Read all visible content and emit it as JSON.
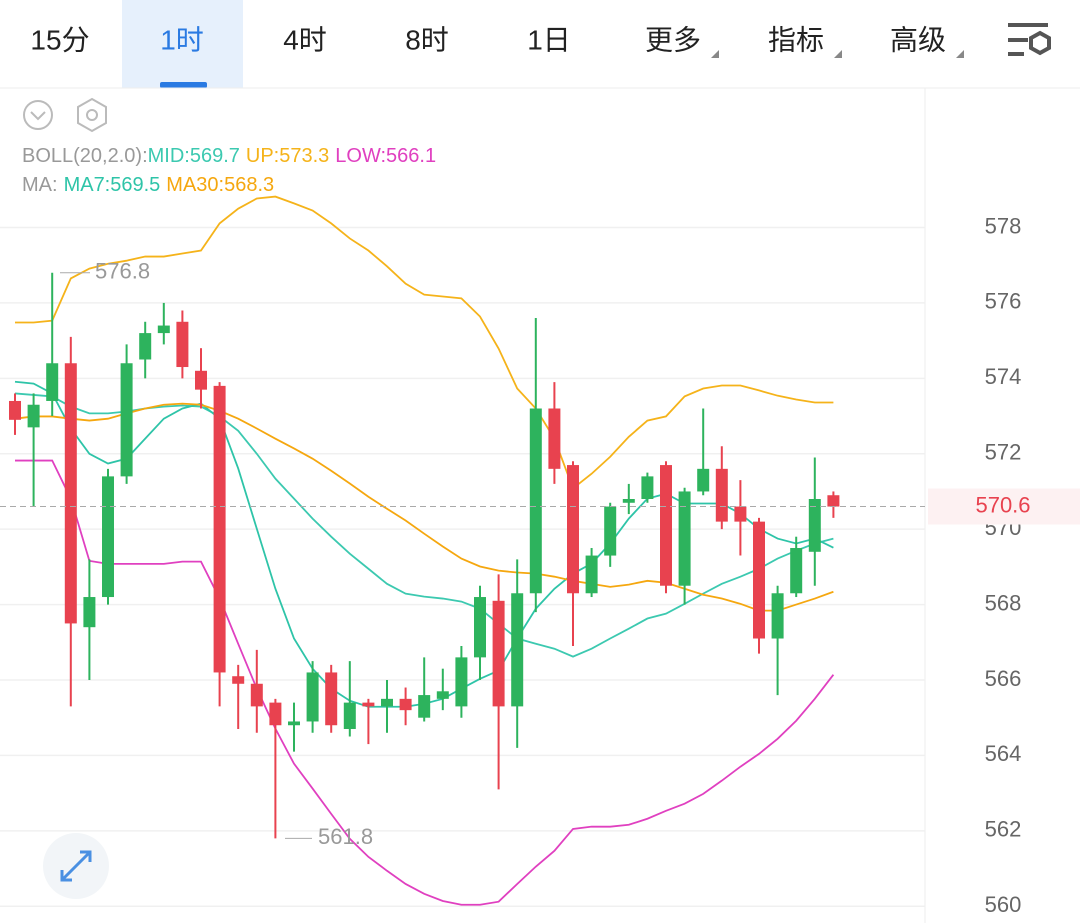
{
  "tabs": [
    "15分",
    "1时",
    "4时",
    "8时",
    "1日",
    "更多",
    "指标",
    "高级"
  ],
  "active_tab": 1,
  "chart_data": {
    "type": "candlestick",
    "legend_groups": [
      "BOLL(20,2.0):",
      "MA:"
    ],
    "up_color": "#2db35d",
    "down_color": "#e8424f",
    "open": [
      573.4,
      572.7,
      573.4,
      574.4,
      567.4,
      568.2,
      571.4,
      574.5,
      575.2,
      575.5,
      574.2,
      573.8,
      566.1,
      565.9,
      565.4,
      564.8,
      564.9,
      566.2,
      564.7,
      565.4,
      565.3,
      565.5,
      565.0,
      565.5,
      565.3,
      566.6,
      568.1,
      565.3,
      568.3,
      573.2,
      571.7,
      568.3,
      569.3,
      570.7,
      570.8,
      571.7,
      568.5,
      571.0,
      571.6,
      570.6,
      570.2,
      567.1,
      568.3,
      569.4,
      570.9
    ],
    "high": [
      573.6,
      573.6,
      576.8,
      575.1,
      569.2,
      571.6,
      574.9,
      575.5,
      576.0,
      575.8,
      574.8,
      573.9,
      566.4,
      566.8,
      565.5,
      565.4,
      566.5,
      566.4,
      566.5,
      565.5,
      566.0,
      565.8,
      566.6,
      566.3,
      566.9,
      568.5,
      568.8,
      569.2,
      575.6,
      573.9,
      571.8,
      569.5,
      570.7,
      571.2,
      571.5,
      571.8,
      571.1,
      573.2,
      572.2,
      571.3,
      570.3,
      568.5,
      569.8,
      571.9,
      571.0
    ],
    "low": [
      572.5,
      570.6,
      573.0,
      565.3,
      566.0,
      568.0,
      571.2,
      574.0,
      574.9,
      574.0,
      573.2,
      565.3,
      564.7,
      564.6,
      561.8,
      564.1,
      564.6,
      564.6,
      564.5,
      564.3,
      564.6,
      564.8,
      564.9,
      565.2,
      565.0,
      566.0,
      563.1,
      564.2,
      567.8,
      571.2,
      566.9,
      568.2,
      569.0,
      570.4,
      570.7,
      568.3,
      568.0,
      570.9,
      570.0,
      569.3,
      566.7,
      565.6,
      568.2,
      568.5,
      570.3
    ],
    "close": [
      572.9,
      573.3,
      574.4,
      567.5,
      568.2,
      571.4,
      574.4,
      575.2,
      575.4,
      574.3,
      573.7,
      566.2,
      565.9,
      565.3,
      564.8,
      564.9,
      566.2,
      564.8,
      565.4,
      565.3,
      565.5,
      565.2,
      565.6,
      565.7,
      566.6,
      568.2,
      565.3,
      568.3,
      573.2,
      571.6,
      568.3,
      569.3,
      570.6,
      570.8,
      571.4,
      568.5,
      571.0,
      571.6,
      570.2,
      570.2,
      567.1,
      568.3,
      569.5,
      570.8,
      570.6
    ],
    "series": [
      {
        "name": "MID:569.7",
        "color": "#3cc9b0",
        "values": [
          573.6,
          573.56,
          573.52,
          573.25,
          573.07,
          573.07,
          573.12,
          573.2,
          573.25,
          573.28,
          573.25,
          572.99,
          572.61,
          572.0,
          571.34,
          570.81,
          570.28,
          569.8,
          569.35,
          568.95,
          568.55,
          568.29,
          568.21,
          568.16,
          568.08,
          567.89,
          567.49,
          567.1,
          566.96,
          566.83,
          566.62,
          566.83,
          567.1,
          567.36,
          567.63,
          567.76,
          568.02,
          568.29,
          568.55,
          568.74,
          568.95,
          569.22,
          569.43,
          569.62,
          569.75
        ]
      },
      {
        "name": "UP:573.3",
        "color": "#f5b31a",
        "values": [
          575.48,
          575.48,
          575.53,
          576.65,
          576.91,
          577.04,
          577.12,
          577.23,
          577.23,
          577.31,
          577.39,
          578.11,
          578.5,
          578.77,
          578.82,
          578.64,
          578.45,
          578.11,
          577.71,
          577.39,
          576.97,
          576.51,
          576.22,
          576.17,
          576.12,
          575.64,
          574.79,
          573.73,
          573.2,
          572.4,
          571.08,
          571.47,
          571.92,
          572.45,
          572.88,
          572.99,
          573.52,
          573.73,
          573.81,
          573.81,
          573.68,
          573.54,
          573.44,
          573.36,
          573.36
        ]
      },
      {
        "name": "LOW:566.1",
        "color": "#e040c0",
        "values": [
          571.82,
          571.82,
          571.82,
          570.81,
          569.16,
          569.08,
          569.08,
          569.08,
          569.08,
          569.14,
          569.14,
          568.16,
          566.96,
          565.77,
          564.71,
          563.78,
          563.12,
          562.45,
          561.79,
          561.31,
          560.94,
          560.59,
          560.33,
          560.14,
          560.04,
          560.04,
          560.12,
          560.59,
          561.05,
          561.47,
          562.05,
          562.11,
          562.11,
          562.16,
          562.32,
          562.53,
          562.72,
          562.98,
          563.33,
          563.7,
          564.04,
          564.44,
          564.92,
          565.5,
          566.14
        ]
      },
      {
        "name": "MA7:569.5",
        "color": "#2ec4a8",
        "values": [
          573.91,
          573.86,
          573.6,
          572.67,
          572.0,
          571.74,
          571.87,
          572.4,
          572.93,
          573.2,
          573.33,
          572.93,
          571.61,
          570.01,
          568.42,
          567.1,
          566.3,
          565.77,
          565.45,
          565.29,
          565.29,
          565.29,
          565.37,
          565.5,
          565.77,
          566.03,
          566.25,
          567.1,
          567.89,
          568.42,
          568.82,
          569.09,
          569.62,
          570.28,
          570.81,
          570.94,
          570.68,
          570.68,
          570.68,
          570.41,
          570.01,
          569.75,
          569.62,
          569.75,
          569.51
        ]
      },
      {
        "name": "MA30:568.3",
        "color": "#f5a70f",
        "values": [
          572.93,
          572.99,
          572.99,
          572.93,
          572.88,
          572.93,
          573.07,
          573.2,
          573.3,
          573.33,
          573.3,
          573.14,
          572.93,
          572.67,
          572.4,
          572.14,
          571.87,
          571.55,
          571.21,
          570.86,
          570.54,
          570.23,
          569.88,
          569.54,
          569.22,
          569.01,
          568.9,
          568.85,
          568.82,
          568.74,
          568.63,
          568.55,
          568.47,
          568.53,
          568.63,
          568.58,
          568.42,
          568.26,
          568.16,
          568.02,
          567.84,
          567.84,
          568.0,
          568.16,
          568.34
        ]
      }
    ],
    "high_label": 576.8,
    "low_label": 561.8,
    "last_price": 570.6,
    "last_price_color": "#e8424f",
    "ylim": [
      559.9,
      581.7
    ],
    "yticks": [
      560,
      562,
      564,
      566,
      568,
      570,
      572,
      574,
      576,
      578
    ],
    "grid": true
  }
}
